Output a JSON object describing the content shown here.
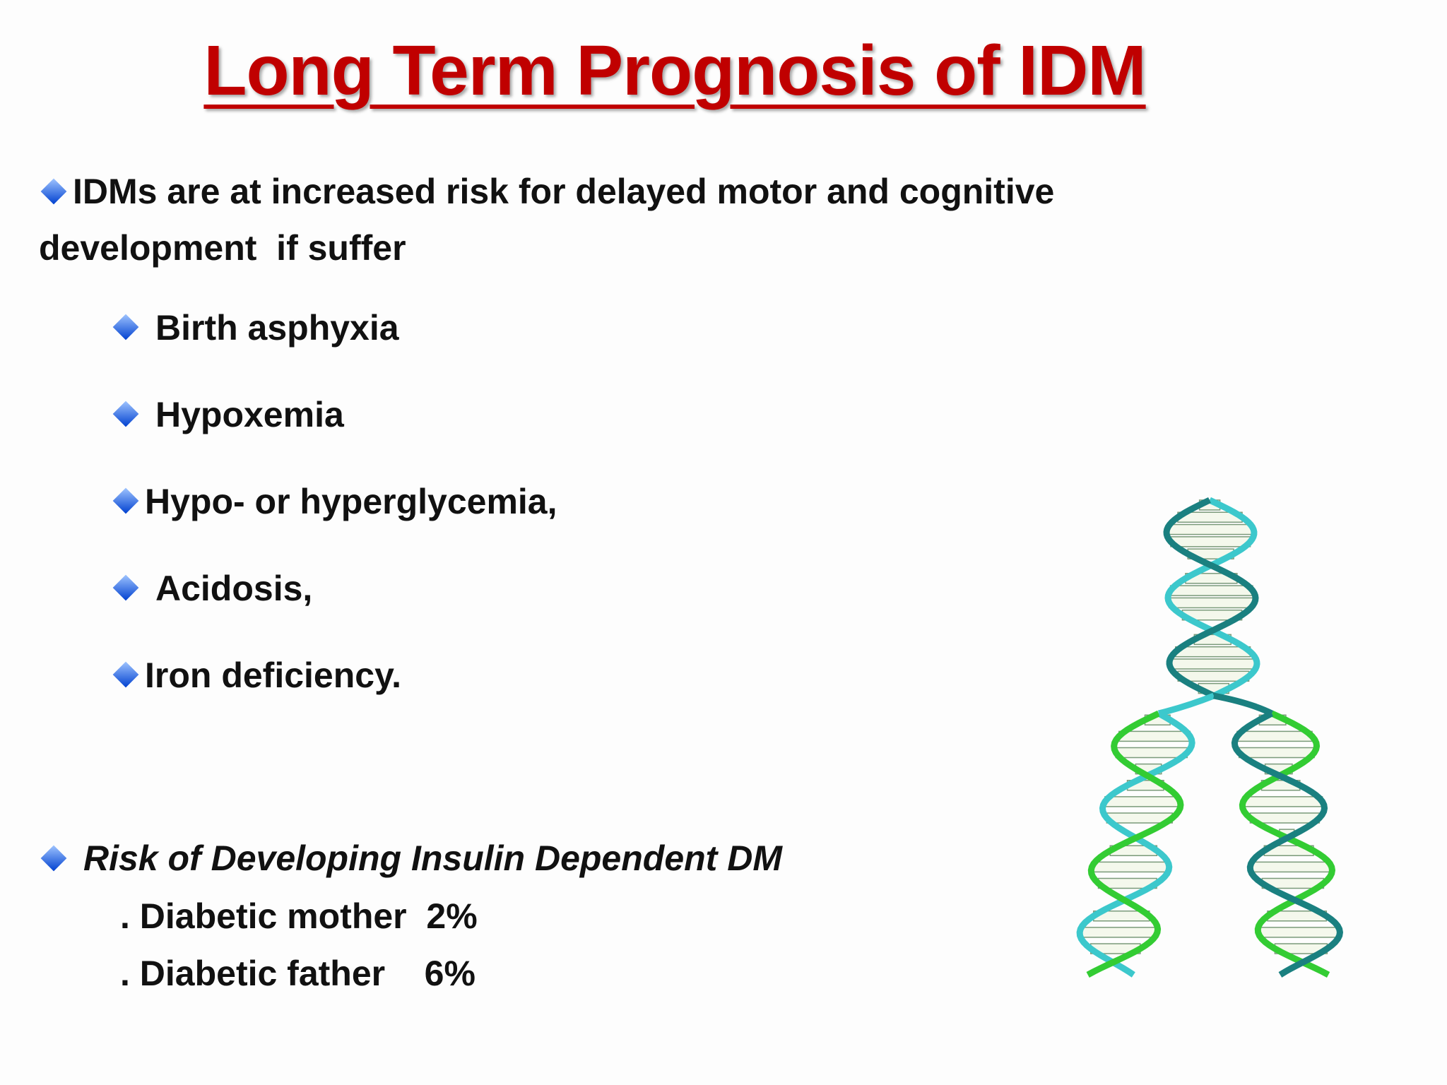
{
  "title": "Long Term Prognosis of IDM",
  "intro": "IDMs are at increased risk for delayed motor and cognitive development  if suffer",
  "conditions": [
    "Birth asphyxia",
    "Hypoxemia",
    "Hypo- or hyperglycemia,",
    "Acidosis,",
    "Iron deficiency."
  ],
  "risk": {
    "heading": "Risk of Developing Insulin Dependent DM",
    "items": [
      ". Diabetic mother  2%",
      ". Diabetic father    6%"
    ]
  }
}
